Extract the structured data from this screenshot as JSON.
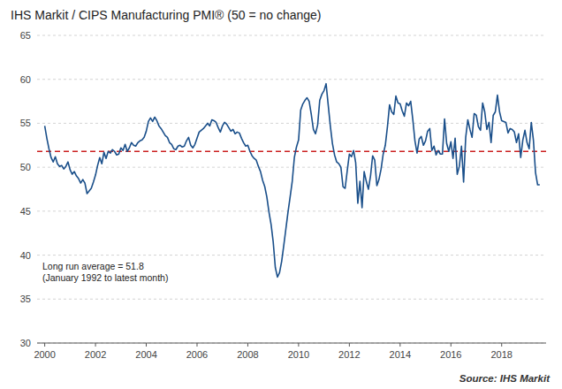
{
  "chart_data": {
    "type": "line",
    "title": "IHS Markit / CIPS Manufacturing PMI® (50 = no change)",
    "source": "Source: IHS Markit",
    "annotations": [
      "Long run average = 51.8",
      "(January 1992 to latest month)"
    ],
    "color": "#1A4F8A",
    "line_style": "solid",
    "reference_line": {
      "value": 51.8,
      "color": "#CC2222",
      "line_style": "dashed"
    },
    "grid": true,
    "xlim": [
      1999.7,
      2019.75
    ],
    "xticks": [
      2000,
      2002,
      2004,
      2006,
      2008,
      2010,
      2012,
      2014,
      2016,
      2018
    ],
    "ylim": [
      30,
      65
    ],
    "yticks": [
      30,
      35,
      40,
      45,
      50,
      55,
      60,
      65
    ],
    "x": [
      2000,
      2000.0833333333333,
      2000.1666666666667,
      2000.25,
      2000.3333333333333,
      2000.4166666666667,
      2000.5,
      2000.5833333333333,
      2000.6666666666667,
      2000.75,
      2000.8333333333333,
      2000.9166666666667,
      2001,
      2001.0833333333333,
      2001.1666666666667,
      2001.25,
      2001.3333333333333,
      2001.4166666666667,
      2001.5,
      2001.5833333333333,
      2001.6666666666667,
      2001.75,
      2001.8333333333333,
      2001.9166666666667,
      2002,
      2002.0833333333333,
      2002.1666666666667,
      2002.25,
      2002.3333333333333,
      2002.4166666666667,
      2002.5,
      2002.5833333333333,
      2002.6666666666667,
      2002.75,
      2002.8333333333333,
      2002.9166666666667,
      2003,
      2003.0833333333333,
      2003.1666666666667,
      2003.25,
      2003.3333333333333,
      2003.4166666666667,
      2003.5,
      2003.5833333333333,
      2003.6666666666667,
      2003.75,
      2003.8333333333333,
      2003.9166666666667,
      2004,
      2004.0833333333333,
      2004.1666666666667,
      2004.25,
      2004.3333333333333,
      2004.4166666666667,
      2004.5,
      2004.5833333333333,
      2004.6666666666667,
      2004.75,
      2004.8333333333333,
      2004.9166666666667,
      2005,
      2005.0833333333333,
      2005.1666666666667,
      2005.25,
      2005.3333333333333,
      2005.4166666666667,
      2005.5,
      2005.5833333333333,
      2005.6666666666667,
      2005.75,
      2005.8333333333333,
      2005.9166666666667,
      2006,
      2006.0833333333333,
      2006.1666666666667,
      2006.25,
      2006.3333333333333,
      2006.4166666666667,
      2006.5,
      2006.5833333333333,
      2006.6666666666667,
      2006.75,
      2006.8333333333333,
      2006.9166666666667,
      2007,
      2007.0833333333333,
      2007.1666666666667,
      2007.25,
      2007.3333333333333,
      2007.4166666666667,
      2007.5,
      2007.5833333333333,
      2007.6666666666667,
      2007.75,
      2007.8333333333333,
      2007.9166666666667,
      2008,
      2008.0833333333333,
      2008.1666666666667,
      2008.25,
      2008.3333333333333,
      2008.4166666666667,
      2008.5,
      2008.5833333333333,
      2008.6666666666667,
      2008.75,
      2008.8333333333333,
      2008.9166666666667,
      2009,
      2009.0833333333333,
      2009.1666666666667,
      2009.25,
      2009.3333333333333,
      2009.4166666666667,
      2009.5,
      2009.5833333333333,
      2009.6666666666667,
      2009.75,
      2009.8333333333333,
      2009.9166666666667,
      2010,
      2010.0833333333333,
      2010.1666666666667,
      2010.25,
      2010.3333333333333,
      2010.4166666666667,
      2010.5,
      2010.5833333333333,
      2010.6666666666667,
      2010.75,
      2010.8333333333333,
      2010.9166666666667,
      2011,
      2011.0833333333333,
      2011.1666666666667,
      2011.25,
      2011.3333333333333,
      2011.4166666666667,
      2011.5,
      2011.5833333333333,
      2011.6666666666667,
      2011.75,
      2011.8333333333333,
      2011.9166666666667,
      2012,
      2012.0833333333333,
      2012.1666666666667,
      2012.25,
      2012.3333333333333,
      2012.4166666666667,
      2012.5,
      2012.5833333333333,
      2012.6666666666667,
      2012.75,
      2012.8333333333333,
      2012.9166666666667,
      2013,
      2013.0833333333333,
      2013.1666666666667,
      2013.25,
      2013.3333333333333,
      2013.4166666666667,
      2013.5,
      2013.5833333333333,
      2013.6666666666667,
      2013.75,
      2013.8333333333333,
      2013.9166666666667,
      2014,
      2014.0833333333333,
      2014.1666666666667,
      2014.25,
      2014.3333333333333,
      2014.4166666666667,
      2014.5,
      2014.5833333333333,
      2014.6666666666667,
      2014.75,
      2014.8333333333333,
      2014.9166666666667,
      2015,
      2015.0833333333333,
      2015.1666666666667,
      2015.25,
      2015.3333333333333,
      2015.4166666666667,
      2015.5,
      2015.5833333333333,
      2015.6666666666667,
      2015.75,
      2015.8333333333333,
      2015.9166666666667,
      2016,
      2016.0833333333333,
      2016.1666666666667,
      2016.25,
      2016.3333333333333,
      2016.4166666666667,
      2016.5,
      2016.5833333333333,
      2016.6666666666667,
      2016.75,
      2016.8333333333333,
      2016.9166666666667,
      2017,
      2017.0833333333333,
      2017.1666666666667,
      2017.25,
      2017.3333333333333,
      2017.4166666666667,
      2017.5,
      2017.5833333333333,
      2017.6666666666667,
      2017.75,
      2017.8333333333333,
      2017.9166666666667,
      2018,
      2018.0833333333333,
      2018.1666666666667,
      2018.25,
      2018.3333333333333,
      2018.4166666666667,
      2018.5,
      2018.5833333333333,
      2018.6666666666667,
      2018.75,
      2018.8333333333333,
      2018.9166666666667,
      2019,
      2019.0833333333333,
      2019.1666666666667,
      2019.25,
      2019.3333333333333,
      2019.4166666666667,
      2019.5
    ],
    "values": [
      54.7,
      53.3,
      52.1,
      51.1,
      50.6,
      51.2,
      50.4,
      50.1,
      50.2,
      49.8,
      50.1,
      50.6,
      49.7,
      49.2,
      49.5,
      49.0,
      48.7,
      48.2,
      48.6,
      48.2,
      47.0,
      47.3,
      47.6,
      48.3,
      49.1,
      50.2,
      51.1,
      50.4,
      51.7,
      51.0,
      51.8,
      51.6,
      52.0,
      51.8,
      51.4,
      51.5,
      52.2,
      51.9,
      52.6,
      51.8,
      52.2,
      52.8,
      52.5,
      52.4,
      52.8,
      53.0,
      53.1,
      53.4,
      54.1,
      55.2,
      55.6,
      55.2,
      55.7,
      55.3,
      54.7,
      54.4,
      54.0,
      53.6,
      53.4,
      52.8,
      52.6,
      52.1,
      52.0,
      52.4,
      52.5,
      52.3,
      52.4,
      53.0,
      53.4,
      52.5,
      52.2,
      52.6,
      53.3,
      54.0,
      54.2,
      54.4,
      54.7,
      55.0,
      54.7,
      55.4,
      55.3,
      55.1,
      54.5,
      54.0,
      54.7,
      55.1,
      54.9,
      54.5,
      54.1,
      54.3,
      53.8,
      54.0,
      53.9,
      53.3,
      52.8,
      52.4,
      52.5,
      51.8,
      51.3,
      51.0,
      50.8,
      50.1,
      49.5,
      48.5,
      47.8,
      46.6,
      44.9,
      43.5,
      41.5,
      38.6,
      37.5,
      38.0,
      39.3,
      41.1,
      43.0,
      44.9,
      46.6,
      48.4,
      51.1,
      52.3,
      53.1,
      56.5,
      57.2,
      57.6,
      57.9,
      57.5,
      56.0,
      54.3,
      53.8,
      54.8,
      57.6,
      58.3,
      58.7,
      59.5,
      57.1,
      54.7,
      52.7,
      51.4,
      50.6,
      50.4,
      50.0,
      47.8,
      47.6,
      49.6,
      51.5,
      51.2,
      51.9,
      50.5,
      45.9,
      48.4,
      45.4,
      49.5,
      48.4,
      47.5,
      49.0,
      51.3,
      50.8,
      47.9,
      48.6,
      49.8,
      51.5,
      52.5,
      54.6,
      57.1,
      56.3,
      56.0,
      58.1,
      57.3,
      57.2,
      56.4,
      55.8,
      57.3,
      57.0,
      57.5,
      55.4,
      53.0,
      51.6,
      53.2,
      53.5,
      52.5,
      53.0,
      54.1,
      54.4,
      51.9,
      52.4,
      51.4,
      51.9,
      51.5,
      51.5,
      55.5,
      52.7,
      51.8,
      52.9,
      51.0,
      53.3,
      49.2,
      50.1,
      52.4,
      48.3,
      53.4,
      55.4,
      54.3,
      53.4,
      56.1,
      55.9,
      54.6,
      54.2,
      57.3,
      56.3,
      54.3,
      55.1,
      52.8,
      55.9,
      56.3,
      58.2,
      56.3,
      55.3,
      55.2,
      55.1,
      53.9,
      54.4,
      54.3,
      54.0,
      52.8,
      53.8,
      51.1,
      53.1,
      54.2,
      52.8,
      52.1,
      55.1,
      53.1,
      49.4,
      48.0,
      48.0
    ]
  }
}
